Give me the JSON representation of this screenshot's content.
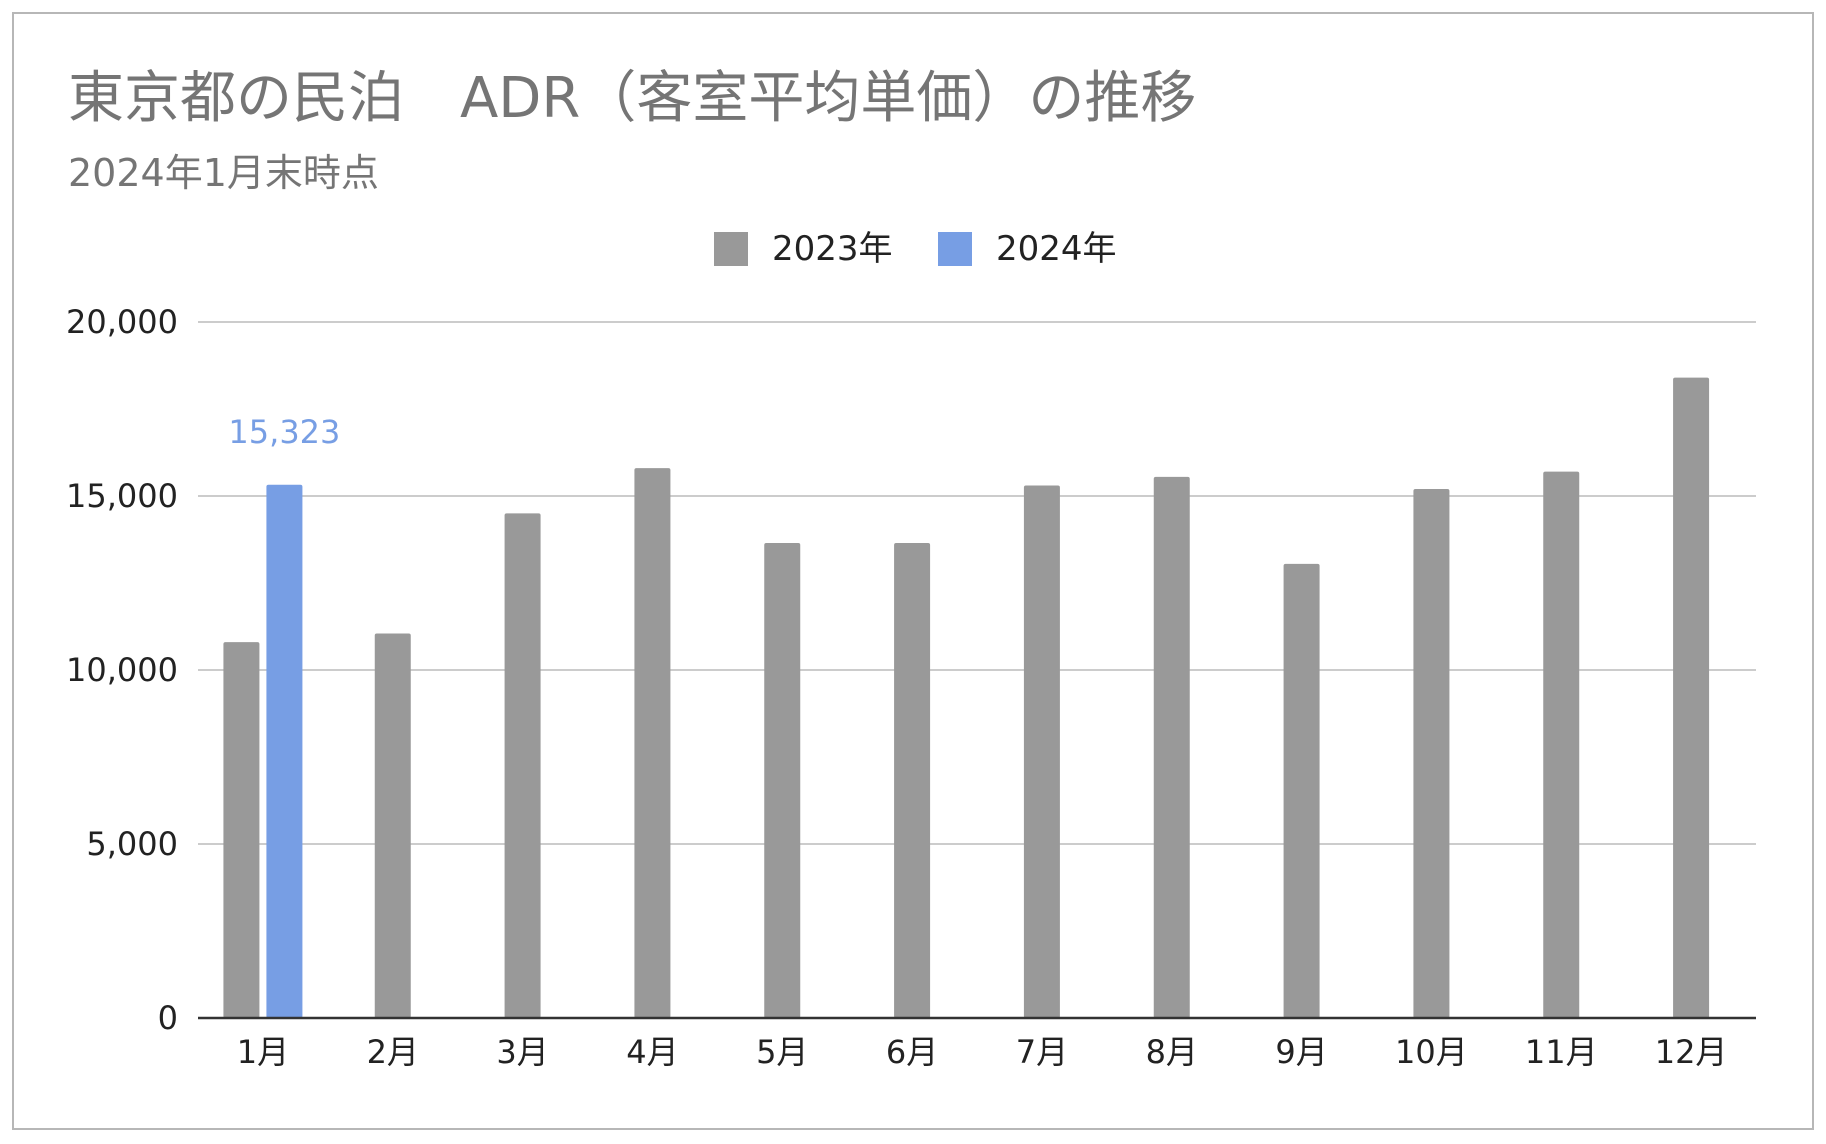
{
  "chart_data": {
    "type": "bar",
    "title": "東京都の民泊　ADR（客室平均単価）の推移",
    "subtitle": "2024年1月末時点",
    "categories": [
      "1月",
      "2月",
      "3月",
      "4月",
      "5月",
      "6月",
      "7月",
      "8月",
      "9月",
      "10月",
      "11月",
      "12月"
    ],
    "series": [
      {
        "name": "2023年",
        "color": "#999999",
        "values": [
          10800,
          11050,
          14500,
          15800,
          13650,
          13650,
          15300,
          15550,
          13050,
          15200,
          15700,
          18400
        ]
      },
      {
        "name": "2024年",
        "color": "#779ee4",
        "values": [
          15323,
          null,
          null,
          null,
          null,
          null,
          null,
          null,
          null,
          null,
          null,
          null
        ],
        "data_labels": [
          "15,323",
          null,
          null,
          null,
          null,
          null,
          null,
          null,
          null,
          null,
          null,
          null
        ]
      }
    ],
    "yticks": [
      0,
      5000,
      10000,
      15000,
      20000
    ],
    "ytick_labels": [
      "0",
      "5,000",
      "10,000",
      "15,000",
      "20,000"
    ],
    "ylim": [
      0,
      20000
    ],
    "grid": true,
    "legend_position": "top-center"
  }
}
